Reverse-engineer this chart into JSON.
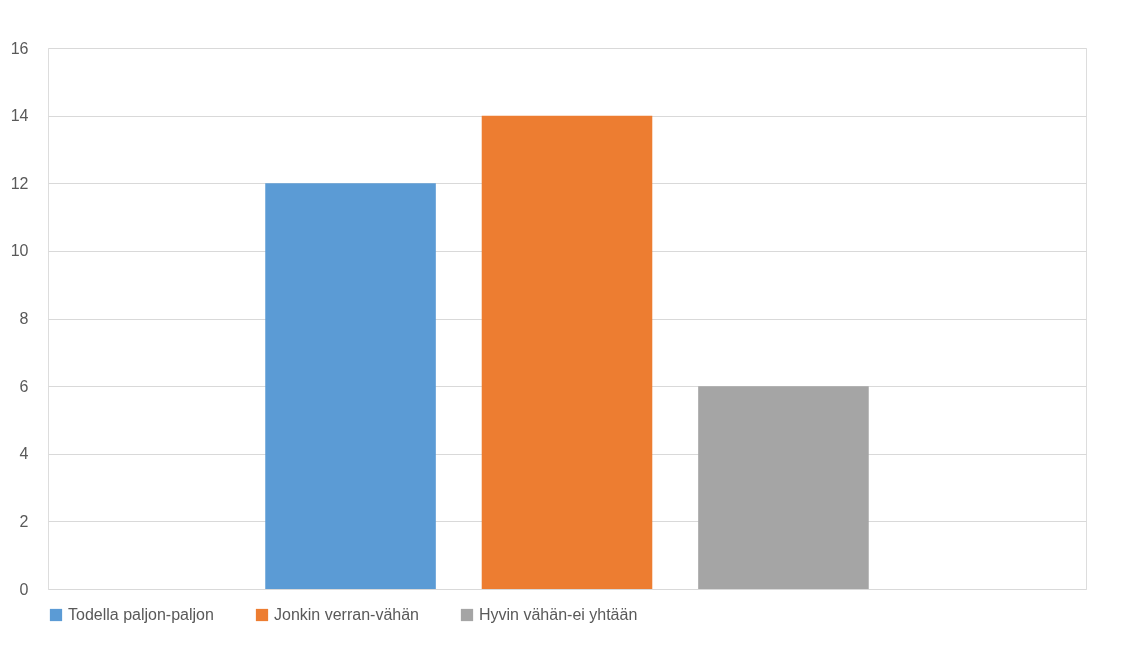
{
  "chart_data": {
    "type": "bar",
    "categories": [
      null
    ],
    "series": [
      {
        "name": "Todella paljon-paljon",
        "color": "#5b9bd5",
        "values": [
          12
        ]
      },
      {
        "name": "Jonkin verran-vähän",
        "color": "#ed7d31",
        "values": [
          14
        ]
      },
      {
        "name": "Hyvin vähän-ei yhtään",
        "color": "#a5a5a5",
        "values": [
          6
        ]
      }
    ],
    "ylim": [
      0,
      16
    ],
    "yticks": [
      0,
      2,
      4,
      6,
      8,
      10,
      12,
      14,
      16
    ],
    "grid": "y",
    "legend": "bottom"
  }
}
